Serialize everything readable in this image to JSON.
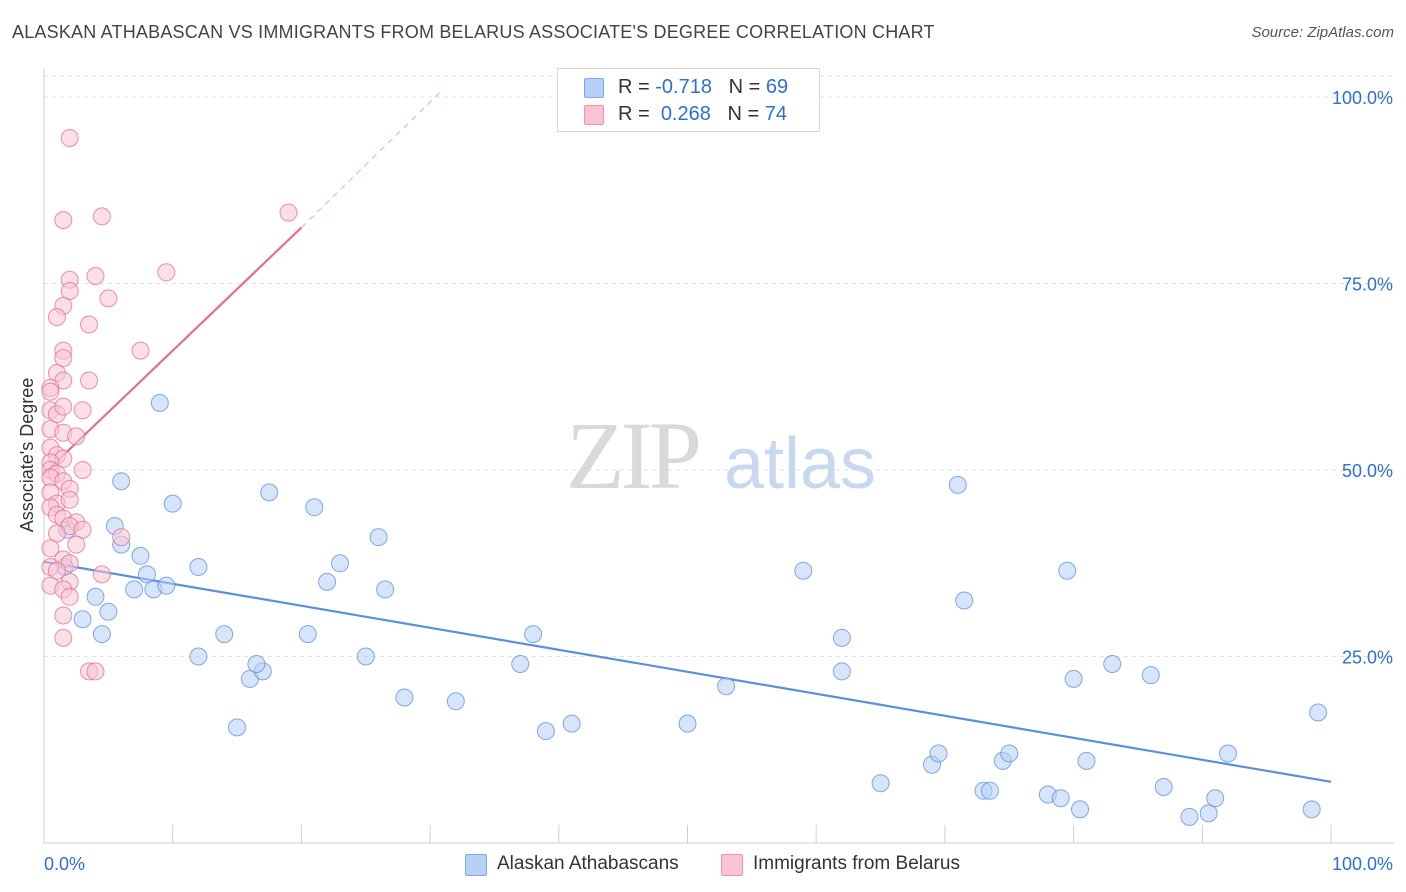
{
  "title": "ALASKAN ATHABASCAN VS IMMIGRANTS FROM BELARUS ASSOCIATE'S DEGREE CORRELATION CHART",
  "source": "Source: ZipAtlas.com",
  "watermark": {
    "zip": "ZIP",
    "atlas": "atlas"
  },
  "legend": {
    "rows": [
      {
        "r_label": "R = ",
        "r_value": "-0.718",
        "n_label": "N = ",
        "n_value": "69",
        "swatch_fill": "#b7d0f5",
        "swatch_stroke": "#7ea8e8"
      },
      {
        "r_label": "R = ",
        "r_value": "0.268",
        "n_label": "N = ",
        "n_value": "74",
        "swatch_fill": "#f8c4d4",
        "swatch_stroke": "#ee93b0"
      }
    ]
  },
  "bottom_legend": [
    {
      "label": "Alaskan Athabascans",
      "color": "#b7d0f5"
    },
    {
      "label": "Immigrants from Belarus",
      "color": "#f8c4d4"
    }
  ],
  "chart_data": {
    "type": "scatter",
    "title": "ALASKAN ATHABASCAN VS IMMIGRANTS FROM BELARUS ASSOCIATE'S DEGREE CORRELATION CHART",
    "xlabel": "",
    "ylabel": "Associate's Degree",
    "xlim": [
      0,
      100
    ],
    "ylim": [
      0,
      105
    ],
    "x_tick_labels": [
      {
        "value": 0,
        "label": "0.0%"
      },
      {
        "value": 100,
        "label": "100.0%"
      }
    ],
    "y_tick_labels": [
      {
        "value": 25,
        "label": "25.0%"
      },
      {
        "value": 50,
        "label": "50.0%"
      },
      {
        "value": 75,
        "label": "75.0%"
      },
      {
        "value": 100,
        "label": "100.0%"
      }
    ],
    "grid": true,
    "series": [
      {
        "name": "Alaskan Athabascans",
        "color": "#5b8fdb",
        "fill": "#b7d0f5",
        "r": -0.718,
        "n": 69,
        "trendline": {
          "x": [
            0,
            100
          ],
          "y": [
            37.7,
            8.2
          ]
        },
        "points": [
          [
            1.8,
            42
          ],
          [
            1.6,
            37
          ],
          [
            3,
            30
          ],
          [
            4,
            33
          ],
          [
            4.5,
            28
          ],
          [
            5,
            31
          ],
          [
            5.5,
            42.5
          ],
          [
            7,
            34
          ],
          [
            6,
            48.5
          ],
          [
            6,
            40
          ],
          [
            7.5,
            38.5
          ],
          [
            8,
            36
          ],
          [
            9,
            59
          ],
          [
            8.5,
            34
          ],
          [
            9.5,
            34.5
          ],
          [
            10,
            45.5
          ],
          [
            12,
            37
          ],
          [
            12,
            25
          ],
          [
            14,
            28
          ],
          [
            15,
            15.5
          ],
          [
            16,
            22
          ],
          [
            17,
            23
          ],
          [
            16.5,
            24
          ],
          [
            17.5,
            47
          ],
          [
            20.5,
            28
          ],
          [
            21,
            45
          ],
          [
            22,
            35
          ],
          [
            23,
            37.5
          ],
          [
            25,
            25
          ],
          [
            26,
            41
          ],
          [
            26.5,
            34
          ],
          [
            28,
            19.5
          ],
          [
            32,
            19
          ],
          [
            37,
            24
          ],
          [
            38,
            28
          ],
          [
            39,
            15
          ],
          [
            41,
            16
          ],
          [
            50,
            16
          ],
          [
            53,
            21
          ],
          [
            59,
            36.5
          ],
          [
            62,
            23
          ],
          [
            62,
            27.5
          ],
          [
            65,
            8
          ],
          [
            69,
            10.5
          ],
          [
            69.5,
            12
          ],
          [
            71,
            48
          ],
          [
            71.5,
            32.5
          ],
          [
            73,
            7
          ],
          [
            73.5,
            7
          ],
          [
            74.5,
            11
          ],
          [
            75,
            12
          ],
          [
            78,
            6.5
          ],
          [
            79,
            6
          ],
          [
            80,
            22
          ],
          [
            79.5,
            36.5
          ],
          [
            80.5,
            4.5
          ],
          [
            81,
            11
          ],
          [
            83,
            24
          ],
          [
            86,
            22.5
          ],
          [
            87,
            7.5
          ],
          [
            89,
            3.5
          ],
          [
            90.5,
            4
          ],
          [
            91,
            6
          ],
          [
            92,
            12
          ],
          [
            98.5,
            4.5
          ],
          [
            99,
            17.5
          ]
        ]
      },
      {
        "name": "Immigrants from Belarus",
        "color": "#e46d94",
        "fill": "#f8c4d4",
        "r": 0.268,
        "n": 74,
        "trendline": {
          "x": [
            0,
            20
          ],
          "y": [
            49.5,
            82.5
          ]
        },
        "trendline_ext": {
          "x": [
            20,
            31
          ],
          "y": [
            82.5,
            101
          ]
        },
        "points": [
          [
            2,
            94.5
          ],
          [
            4.5,
            84
          ],
          [
            1.5,
            83.5
          ],
          [
            9.5,
            76.5
          ],
          [
            2,
            75.5
          ],
          [
            4,
            76
          ],
          [
            2,
            74
          ],
          [
            5,
            73
          ],
          [
            1.5,
            72
          ],
          [
            1,
            70.5
          ],
          [
            3.5,
            69.5
          ],
          [
            1.5,
            66
          ],
          [
            1.5,
            65
          ],
          [
            7.5,
            66
          ],
          [
            1,
            63
          ],
          [
            1.5,
            62
          ],
          [
            3.5,
            62
          ],
          [
            0.5,
            61
          ],
          [
            0.5,
            60.5
          ],
          [
            0.5,
            58
          ],
          [
            1,
            57.5
          ],
          [
            3,
            58
          ],
          [
            1.5,
            58.5
          ],
          [
            0.5,
            55.5
          ],
          [
            1.5,
            55
          ],
          [
            2.5,
            54.5
          ],
          [
            0.5,
            53
          ],
          [
            1,
            52
          ],
          [
            1.5,
            51.5
          ],
          [
            0.5,
            51
          ],
          [
            0.5,
            50
          ],
          [
            1,
            49.5
          ],
          [
            3,
            50
          ],
          [
            0.5,
            49
          ],
          [
            1.5,
            48.5
          ],
          [
            2,
            47.5
          ],
          [
            0.5,
            47
          ],
          [
            1,
            45.5
          ],
          [
            2,
            46
          ],
          [
            0.5,
            45
          ],
          [
            1,
            44
          ],
          [
            1.5,
            43.5
          ],
          [
            2.5,
            43
          ],
          [
            2,
            42.5
          ],
          [
            3,
            42
          ],
          [
            1,
            41.5
          ],
          [
            6,
            41
          ],
          [
            2.5,
            40
          ],
          [
            0.5,
            39.5
          ],
          [
            1.5,
            38
          ],
          [
            2,
            37.5
          ],
          [
            0.5,
            37
          ],
          [
            1,
            36.5
          ],
          [
            4.5,
            36
          ],
          [
            2,
            35
          ],
          [
            0.5,
            34.5
          ],
          [
            1.5,
            34
          ],
          [
            2,
            33
          ],
          [
            1.5,
            30.5
          ],
          [
            1.5,
            27.5
          ],
          [
            3.5,
            23
          ],
          [
            4,
            23
          ],
          [
            19,
            84.5
          ]
        ]
      }
    ]
  }
}
